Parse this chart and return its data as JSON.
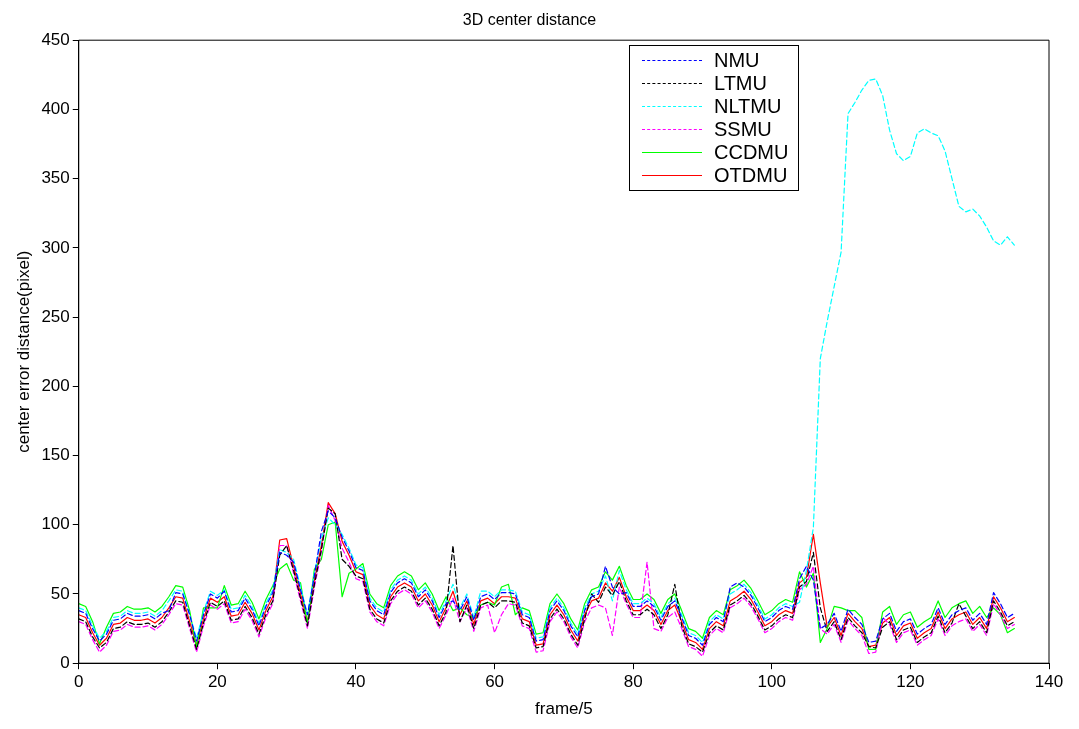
{
  "chart_data": {
    "type": "line",
    "title": "3D center distance",
    "xlabel": "frame/5",
    "ylabel": "center error distance(pixel)",
    "xlim": [
      0,
      140
    ],
    "xticks": [
      0,
      20,
      40,
      60,
      80,
      100,
      120,
      140
    ],
    "ylim": [
      0,
      450
    ],
    "yticks": [
      0,
      50,
      100,
      150,
      200,
      250,
      300,
      350,
      400,
      450
    ],
    "grid": false,
    "legend": "top right",
    "marker": "none",
    "x": [
      0,
      1,
      2,
      3,
      4,
      5,
      6,
      7,
      8,
      9,
      10,
      11,
      12,
      13,
      14,
      15,
      16,
      17,
      18,
      19,
      20,
      21,
      22,
      23,
      24,
      25,
      26,
      27,
      28,
      29,
      30,
      31,
      32,
      33,
      34,
      35,
      36,
      37,
      38,
      39,
      40,
      41,
      42,
      43,
      44,
      45,
      46,
      47,
      48,
      49,
      50,
      51,
      52,
      53,
      54,
      55,
      56,
      57,
      58,
      59,
      60,
      61,
      62,
      63,
      64,
      65,
      66,
      67,
      68,
      69,
      70,
      71,
      72,
      73,
      74,
      75,
      76,
      77,
      78,
      79,
      80,
      81,
      82,
      83,
      84,
      85,
      86,
      87,
      88,
      89,
      90,
      91,
      92,
      93,
      94,
      95,
      96,
      97,
      98,
      99,
      100,
      101,
      102,
      103,
      104,
      105,
      106,
      107,
      108,
      109,
      110,
      111,
      112,
      113,
      114,
      115,
      116,
      117,
      118,
      119,
      120,
      121,
      122,
      123,
      124,
      125,
      126,
      127,
      128,
      129,
      130,
      131,
      132,
      133,
      134,
      135
    ],
    "series": [
      {
        "name": "NMU",
        "color": "#0000ff",
        "line_style": "dashed",
        "values": [
          38,
          36,
          25,
          16,
          21,
          31,
          32,
          36,
          34,
          34,
          35,
          32,
          36,
          38,
          51,
          50,
          35,
          16,
          35,
          50,
          47,
          52,
          37,
          38,
          47,
          39,
          27,
          41,
          51,
          80,
          78,
          73,
          53,
          35,
          63,
          95,
          110,
          105,
          91,
          81,
          69,
          67,
          45,
          38,
          35,
          51,
          58,
          61,
          58,
          48,
          53,
          45,
          33,
          43,
          45,
          38,
          48,
          31,
          48,
          50,
          46,
          51,
          51,
          50,
          35,
          33,
          16,
          17,
          38,
          45,
          38,
          27,
          19,
          38,
          48,
          50,
          70,
          55,
          50,
          51,
          41,
          41,
          45,
          41,
          31,
          41,
          45,
          33,
          20,
          18,
          13,
          28,
          33,
          30,
          55,
          58,
          55,
          49,
          40,
          30,
          33,
          38,
          41,
          39,
          61,
          70,
          60,
          25,
          28,
          36,
          23,
          39,
          33,
          28,
          15,
          16,
          32,
          36,
          23,
          30,
          32,
          21,
          25,
          28,
          40,
          28,
          35,
          38,
          40,
          31,
          36,
          28,
          51,
          43,
          33,
          36
        ]
      },
      {
        "name": "LTMU",
        "color": "#000000",
        "line_style": "dashed",
        "values": [
          32,
          30,
          19,
          11,
          15,
          25,
          26,
          30,
          28,
          28,
          29,
          26,
          30,
          37,
          45,
          44,
          27,
          10,
          29,
          44,
          41,
          45,
          31,
          32,
          41,
          33,
          21,
          35,
          45,
          78,
          85,
          67,
          47,
          27,
          57,
          82,
          112,
          108,
          75,
          70,
          63,
          61,
          39,
          32,
          29,
          45,
          52,
          55,
          52,
          42,
          47,
          39,
          27,
          37,
          85,
          30,
          42,
          25,
          42,
          44,
          40,
          45,
          45,
          44,
          29,
          27,
          11,
          12,
          32,
          39,
          32,
          21,
          13,
          32,
          50,
          44,
          55,
          49,
          59,
          45,
          35,
          35,
          39,
          35,
          25,
          35,
          57,
          27,
          14,
          12,
          8,
          22,
          27,
          24,
          42,
          45,
          49,
          43,
          34,
          24,
          27,
          32,
          35,
          33,
          55,
          59,
          80,
          40,
          23,
          30,
          17,
          33,
          27,
          22,
          12,
          11,
          26,
          30,
          17,
          24,
          26,
          15,
          19,
          22,
          34,
          22,
          29,
          43,
          34,
          25,
          30,
          22,
          45,
          37,
          27,
          30
        ]
      },
      {
        "name": "NLTMU",
        "color": "#00ffff",
        "line_style": "dashed",
        "values": [
          40,
          38,
          27,
          18,
          23,
          33,
          34,
          38,
          36,
          36,
          37,
          34,
          38,
          45,
          53,
          52,
          35,
          18,
          37,
          52,
          49,
          53,
          39,
          40,
          49,
          41,
          29,
          43,
          53,
          82,
          80,
          75,
          55,
          35,
          65,
          90,
          105,
          100,
          93,
          83,
          71,
          69,
          47,
          40,
          37,
          53,
          60,
          63,
          60,
          50,
          55,
          47,
          35,
          45,
          57,
          40,
          50,
          33,
          52,
          52,
          48,
          53,
          53,
          52,
          37,
          35,
          18,
          19,
          40,
          47,
          40,
          29,
          21,
          40,
          50,
          52,
          63,
          45,
          67,
          53,
          43,
          43,
          47,
          43,
          33,
          43,
          47,
          35,
          22,
          20,
          15,
          30,
          35,
          32,
          50,
          53,
          57,
          51,
          42,
          32,
          35,
          40,
          43,
          41,
          44,
          67,
          98,
          220,
          247,
          272,
          297,
          397,
          405,
          414,
          421,
          422,
          410,
          385,
          368,
          363,
          366,
          383,
          386,
          383,
          381,
          370,
          350,
          330,
          326,
          328,
          323,
          315,
          305,
          302,
          308,
          302
        ]
      },
      {
        "name": "SSMU",
        "color": "#ff00ff",
        "line_style": "dashed",
        "values": [
          30,
          28,
          17,
          8,
          13,
          23,
          24,
          28,
          26,
          26,
          27,
          24,
          28,
          35,
          43,
          42,
          25,
          8,
          27,
          42,
          39,
          43,
          29,
          30,
          39,
          31,
          19,
          33,
          43,
          85,
          85,
          65,
          45,
          25,
          55,
          80,
          114,
          103,
          83,
          73,
          61,
          59,
          37,
          30,
          27,
          43,
          50,
          53,
          50,
          40,
          45,
          37,
          25,
          35,
          47,
          30,
          40,
          23,
          40,
          42,
          22,
          35,
          43,
          42,
          27,
          25,
          8,
          9,
          30,
          37,
          30,
          19,
          11,
          30,
          40,
          42,
          40,
          20,
          55,
          43,
          33,
          33,
          73,
          25,
          23,
          33,
          37,
          25,
          12,
          10,
          5,
          20,
          25,
          22,
          40,
          43,
          47,
          41,
          32,
          22,
          25,
          30,
          33,
          31,
          53,
          57,
          70,
          25,
          21,
          28,
          15,
          31,
          25,
          20,
          7,
          8,
          33,
          28,
          15,
          22,
          24,
          13,
          17,
          20,
          32,
          20,
          27,
          30,
          32,
          23,
          28,
          20,
          43,
          35,
          25,
          28
        ]
      },
      {
        "name": "CCDMU",
        "color": "#00ff00",
        "line_style": "solid",
        "values": [
          43,
          41,
          30,
          14,
          26,
          36,
          37,
          41,
          39,
          39,
          40,
          37,
          41,
          48,
          56,
          55,
          38,
          11,
          40,
          40,
          40,
          56,
          42,
          43,
          52,
          44,
          32,
          46,
          56,
          68,
          72,
          60,
          58,
          28,
          68,
          75,
          100,
          102,
          48,
          65,
          68,
          72,
          50,
          43,
          40,
          56,
          63,
          66,
          63,
          53,
          58,
          50,
          38,
          48,
          38,
          40,
          35,
          33,
          42,
          44,
          42,
          55,
          57,
          35,
          40,
          38,
          21,
          22,
          43,
          50,
          43,
          32,
          24,
          43,
          53,
          55,
          66,
          60,
          70,
          56,
          46,
          46,
          50,
          46,
          36,
          46,
          50,
          38,
          25,
          23,
          18,
          33,
          38,
          35,
          53,
          56,
          60,
          54,
          45,
          35,
          38,
          43,
          46,
          44,
          66,
          55,
          65,
          15,
          25,
          41,
          40,
          38,
          38,
          33,
          10,
          10,
          37,
          41,
          28,
          35,
          37,
          26,
          30,
          33,
          45,
          33,
          40,
          43,
          45,
          36,
          41,
          33,
          40,
          35,
          22,
          25
        ]
      },
      {
        "name": "OTDMU",
        "color": "#ff0000",
        "line_style": "solid",
        "values": [
          35,
          33,
          22,
          13,
          18,
          28,
          29,
          33,
          31,
          31,
          32,
          29,
          33,
          40,
          48,
          47,
          30,
          13,
          32,
          47,
          44,
          48,
          34,
          35,
          44,
          36,
          24,
          38,
          48,
          89,
          90,
          70,
          50,
          30,
          60,
          85,
          116,
          108,
          88,
          78,
          66,
          64,
          42,
          35,
          32,
          48,
          55,
          58,
          55,
          45,
          50,
          42,
          30,
          40,
          52,
          35,
          45,
          28,
          45,
          47,
          43,
          48,
          48,
          47,
          32,
          30,
          13,
          14,
          35,
          42,
          35,
          24,
          16,
          35,
          45,
          47,
          58,
          52,
          62,
          48,
          38,
          38,
          42,
          38,
          28,
          38,
          42,
          30,
          17,
          15,
          10,
          25,
          30,
          27,
          45,
          48,
          52,
          46,
          37,
          27,
          30,
          35,
          38,
          36,
          58,
          62,
          93,
          58,
          26,
          33,
          20,
          36,
          30,
          25,
          12,
          13,
          29,
          33,
          20,
          27,
          29,
          18,
          22,
          25,
          37,
          25,
          32,
          35,
          37,
          28,
          33,
          25,
          48,
          40,
          30,
          33
        ]
      }
    ]
  }
}
